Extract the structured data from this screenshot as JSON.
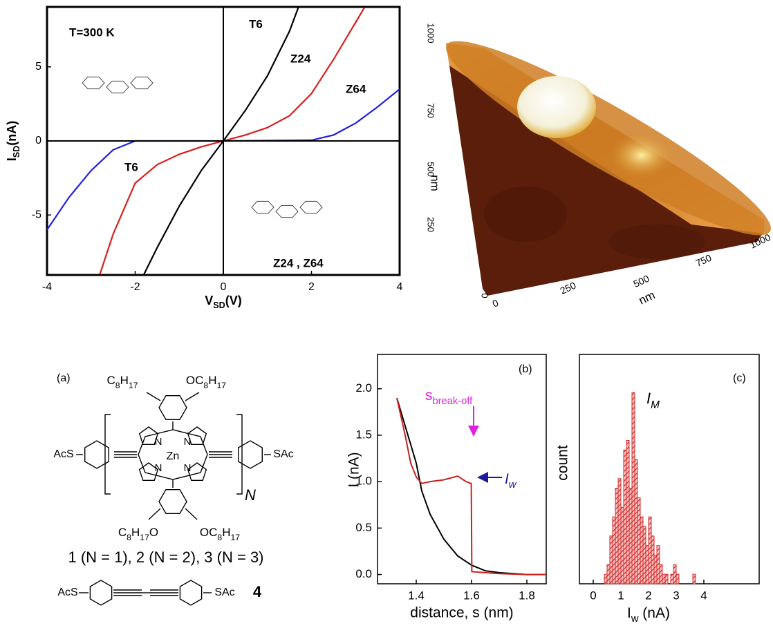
{
  "chart_data": [
    {
      "type": "line",
      "x_label": {
        "main": "V",
        "sub": "SD",
        "rest": "(V)"
      },
      "y_label": {
        "main": "I",
        "sub": "SD",
        "rest": "(nA)"
      },
      "xlim": [
        -4,
        4
      ],
      "ylim": [
        -9.05,
        9.05
      ],
      "xticks": [
        -4,
        -2,
        0,
        2,
        4
      ],
      "yticks": [
        -5,
        0,
        5
      ],
      "annotations": [
        "T=300 K",
        "T6",
        "Z24 , Z64"
      ],
      "series": [
        {
          "name": "T6",
          "color": "#000000",
          "x": [
            -1.8,
            -1.5,
            -1,
            -0.5,
            0,
            0.5,
            1,
            1.5,
            1.7
          ],
          "values": [
            -9,
            -7.2,
            -4.4,
            -2,
            0,
            2.06,
            4.4,
            7.4,
            9
          ]
        },
        {
          "name": "Z24",
          "color": "#d81e1e",
          "x": [
            -2.8,
            -2.5,
            -2,
            -1.5,
            -1,
            -0.5,
            0,
            0.5,
            1,
            1.5,
            2,
            2.5,
            3,
            3.2
          ],
          "values": [
            -9,
            -6.3,
            -2.85,
            -1.6,
            -0.9,
            -0.4,
            0,
            0.4,
            0.9,
            1.7,
            3.2,
            5.5,
            8,
            9
          ]
        },
        {
          "name": "Z64",
          "color": "#1f1fe0",
          "x": [
            -4,
            -3.5,
            -3,
            -2.5,
            -2,
            0,
            2,
            2.5,
            3,
            3.5,
            4
          ],
          "values": [
            -6,
            -3.8,
            -2,
            -0.6,
            0,
            0,
            0.05,
            0.4,
            1.2,
            2.3,
            3.5
          ]
        }
      ]
    },
    {
      "type": "line",
      "panel_label": "(b)",
      "x_label": {
        "main": "distance, s (nm)"
      },
      "y_label": {
        "main": "I (nA)"
      },
      "xlim": [
        1.26,
        1.87
      ],
      "ylim": [
        -0.1,
        2.37
      ],
      "xticks": [
        1.4,
        1.6,
        1.8
      ],
      "yticks": [
        {
          "value": 0,
          "label": "0.0"
        },
        0.5,
        {
          "value": 1,
          "label": "1.0"
        },
        1.5,
        {
          "value": 2,
          "label": "2.0"
        }
      ],
      "annotations": [
        {
          "main": "s",
          "sub": "break-off"
        },
        {
          "main": "I",
          "sub": "w"
        }
      ],
      "series": [
        {
          "color": "#000000",
          "x": [
            1.33,
            1.36,
            1.38,
            1.4,
            1.42,
            1.45,
            1.5,
            1.55,
            1.6,
            1.65,
            1.7,
            1.75,
            1.8,
            1.87
          ],
          "values": [
            1.9,
            1.6,
            1.4,
            1.2,
            0.9,
            0.65,
            0.38,
            0.2,
            0.1,
            0.04,
            0.02,
            0.01,
            0.0,
            0.0
          ]
        },
        {
          "color": "#cc1f1f",
          "x": [
            1.33,
            1.36,
            1.38,
            1.4,
            1.42,
            1.45,
            1.5,
            1.55,
            1.58,
            1.599,
            1.601,
            1.65,
            1.7,
            1.8,
            1.87
          ],
          "values": [
            1.9,
            1.5,
            1.2,
            1.05,
            0.98,
            1.0,
            1.02,
            1.06,
            1.0,
            0.98,
            0.03,
            0.02,
            0.01,
            0.0,
            0.0
          ]
        }
      ]
    },
    {
      "type": "histogram",
      "panel_label": "(c)",
      "x_label": {
        "main": "I",
        "sub": "w",
        "rest": " (nA)"
      },
      "y_label": {
        "main": "count"
      },
      "annotation": {
        "main": "I",
        "sub": "M"
      },
      "color": "#d42a2a",
      "xlim": [
        -0.5,
        6.0
      ],
      "ylim": [
        0,
        24
      ],
      "xticks": [
        0,
        1,
        2,
        3,
        4
      ],
      "bins": [
        0.4,
        0.5,
        0.6,
        0.7,
        0.8,
        0.9,
        1.0,
        1.1,
        1.2,
        1.3,
        1.4,
        1.5,
        1.6,
        1.7,
        1.8,
        1.9,
        2.0,
        2.1,
        2.2,
        2.3,
        2.4,
        2.5,
        2.6,
        2.7,
        2.8,
        2.9,
        3.0,
        3.1,
        3.2,
        3.3,
        3.4,
        3.5,
        3.6,
        3.7
      ],
      "values": [
        1,
        2,
        5,
        7,
        10,
        11,
        8,
        14,
        15,
        10,
        20,
        13,
        9,
        7,
        6,
        4,
        7,
        5,
        3,
        4,
        2,
        1,
        1,
        0,
        1,
        2,
        1,
        0,
        0,
        0,
        0,
        0,
        1
      ]
    }
  ],
  "afm": {
    "left_ticks": [
      "1000",
      "750",
      "500",
      "250",
      "0"
    ],
    "left_unit": "nm",
    "bottom_ticks": [
      "0",
      "250",
      "500",
      "750",
      "1000"
    ],
    "bottom_unit": "nm"
  },
  "structure": {
    "panel_label": "(a)",
    "labels": [
      "C8H17",
      "OC8H17",
      "AcS",
      "SAc",
      "Zn",
      "N",
      "N",
      "N",
      "N",
      "N",
      "C8H17O",
      "OC8H17"
    ],
    "caption": "1 (N = 1), 2 (N = 2), 3 (N = 3)",
    "compound4": {
      "left": "AcS",
      "right": "SAc",
      "number": "4"
    }
  }
}
